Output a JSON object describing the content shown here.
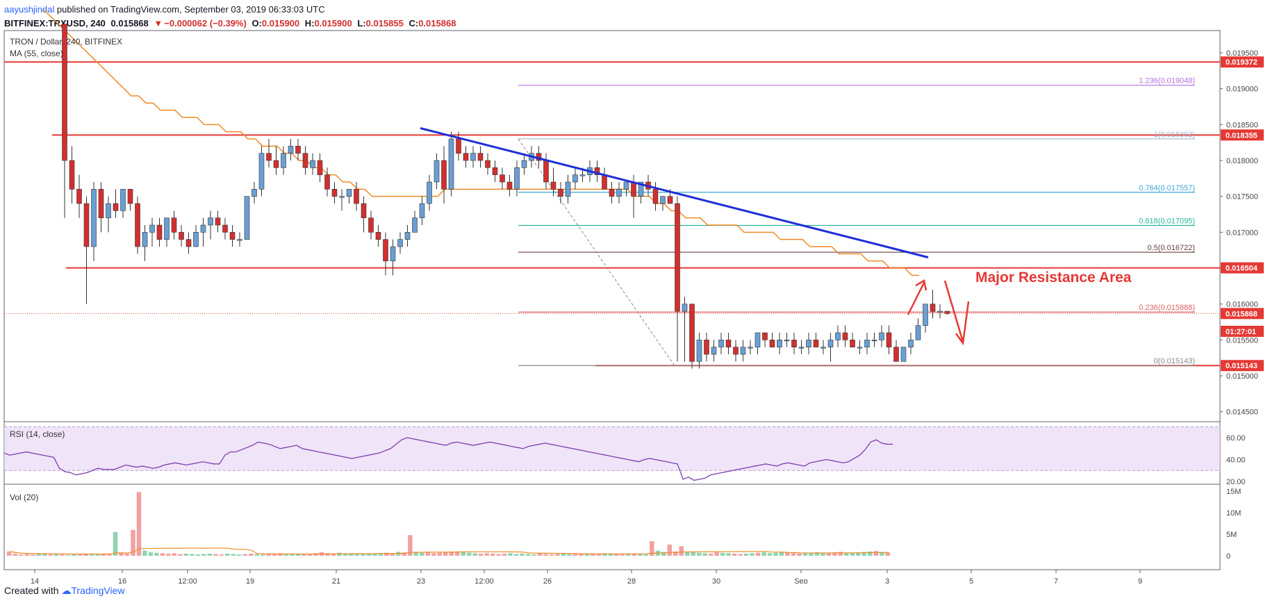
{
  "header": {
    "author": "aayushjindal",
    "published_text": "published on TradingView.com, September 03, 2019 06:33:03 UTC",
    "symbol": "BITFINEX:TRXUSD, 240",
    "last": "0.015868",
    "change_arrow": "▼",
    "change": "−0.000062 (−0.39%)",
    "o_label": "O:",
    "o": "0.015900",
    "h_label": "H:",
    "h": "0.015900",
    "l_label": "L:",
    "l": "0.015855",
    "c_label": "C:",
    "c": "0.015868"
  },
  "pane_title": "TRON / Dollar, 240, BITFINEX",
  "ma_label": "MA (55, close)",
  "rsi_label": "RSI (14, close)",
  "vol_label": "Vol (20)",
  "annotation": "Major Resistance Area",
  "footer": {
    "created_with": "Created with",
    "brand": "TradingView"
  },
  "colors": {
    "up": "#6a9fd4",
    "down": "#d32f2f",
    "ma": "#f08a24",
    "trend": "#1c2fd6",
    "resistance": "#e53935",
    "rsi": "#7e3fb0",
    "vol_up": "#8fd4b0",
    "vol_down": "#f2a1a1"
  },
  "chart_data": {
    "type": "candlestick",
    "symbol": "TRXUSD",
    "interval": "240",
    "ylim": [
      0.01425,
      0.01985
    ],
    "y_ticks": [
      "0.019500",
      "0.019000",
      "0.018500",
      "0.018000",
      "0.017500",
      "0.017000",
      "0.016500",
      "0.016000",
      "0.015500",
      "0.015000",
      "0.014500"
    ],
    "x_ticks": [
      "14",
      "16",
      "12:00",
      "19",
      "21",
      "23",
      "12:00",
      "26",
      "28",
      "30",
      "Sep",
      "3",
      "5",
      "7",
      "9"
    ],
    "price_tags": [
      {
        "label": "0.019372",
        "value": 0.019372,
        "color": "#e53935"
      },
      {
        "label": "0.018355",
        "value": 0.018355,
        "color": "#e53935"
      },
      {
        "label": "0.016504",
        "value": 0.016504,
        "color": "#e53935"
      },
      {
        "label": "0.015868",
        "value": 0.015868,
        "color": "#e53935"
      },
      {
        "label": "01:27:01",
        "value": 0.01562,
        "color": "#e53935"
      },
      {
        "label": "0.015143",
        "value": 0.015143,
        "color": "#e53935"
      }
    ],
    "horizontal_levels": [
      0.019372,
      0.018355,
      0.016504,
      0.015143
    ],
    "fib_levels": [
      {
        "label": "1.236(0.019048)",
        "value": 0.019048,
        "color": "#b36ee0"
      },
      {
        "label": "1(0.018302)",
        "value": 0.018302,
        "color": "#9fb6c8"
      },
      {
        "label": "0.764(0.017557)",
        "value": 0.017557,
        "color": "#3aa6d6"
      },
      {
        "label": "0.618(0.017095)",
        "value": 0.017095,
        "color": "#28b79a"
      },
      {
        "label": "0.5(0.016722)",
        "value": 0.016722,
        "color": "#6b3f3f"
      },
      {
        "label": "0.236(0.015888)",
        "value": 0.015888,
        "color": "#e06060"
      },
      {
        "label": "0(0.015143)",
        "value": 0.015143,
        "color": "#888888"
      }
    ],
    "candles": [
      [
        0.0199,
        0.0199,
        0.0172,
        0.018
      ],
      [
        0.018,
        0.0182,
        0.0174,
        0.0176
      ],
      [
        0.0176,
        0.0178,
        0.0172,
        0.0174
      ],
      [
        0.0174,
        0.0175,
        0.016,
        0.0168
      ],
      [
        0.0168,
        0.0177,
        0.0166,
        0.0176
      ],
      [
        0.0176,
        0.0177,
        0.017,
        0.0172
      ],
      [
        0.0172,
        0.0175,
        0.017,
        0.0174
      ],
      [
        0.0174,
        0.0176,
        0.0172,
        0.0173
      ],
      [
        0.0173,
        0.0176,
        0.0172,
        0.0176
      ],
      [
        0.0176,
        0.0176,
        0.0173,
        0.0174
      ],
      [
        0.0174,
        0.0175,
        0.0167,
        0.0168
      ],
      [
        0.0168,
        0.0171,
        0.0166,
        0.017
      ],
      [
        0.017,
        0.0172,
        0.0168,
        0.0171
      ],
      [
        0.0171,
        0.0172,
        0.0168,
        0.0169
      ],
      [
        0.0169,
        0.0172,
        0.0168,
        0.0172
      ],
      [
        0.0172,
        0.0173,
        0.0169,
        0.017
      ],
      [
        0.017,
        0.0171,
        0.0168,
        0.0169
      ],
      [
        0.0169,
        0.017,
        0.0167,
        0.0168
      ],
      [
        0.0168,
        0.0171,
        0.0168,
        0.017
      ],
      [
        0.017,
        0.0172,
        0.0168,
        0.0171
      ],
      [
        0.0171,
        0.0173,
        0.0169,
        0.0172
      ],
      [
        0.0172,
        0.0173,
        0.017,
        0.0171
      ],
      [
        0.0171,
        0.0172,
        0.0169,
        0.017
      ],
      [
        0.017,
        0.0171,
        0.0168,
        0.0169
      ],
      [
        0.0169,
        0.017,
        0.0168,
        0.0169
      ],
      [
        0.0169,
        0.0175,
        0.0169,
        0.0175
      ],
      [
        0.0175,
        0.0177,
        0.0174,
        0.0176
      ],
      [
        0.0176,
        0.0182,
        0.0175,
        0.0181
      ],
      [
        0.0181,
        0.0183,
        0.0179,
        0.018
      ],
      [
        0.018,
        0.0182,
        0.0178,
        0.0179
      ],
      [
        0.0179,
        0.0182,
        0.0178,
        0.0181
      ],
      [
        0.0181,
        0.0183,
        0.018,
        0.0182
      ],
      [
        0.0182,
        0.0183,
        0.018,
        0.0181
      ],
      [
        0.0181,
        0.0182,
        0.0178,
        0.0179
      ],
      [
        0.0179,
        0.0181,
        0.0178,
        0.018
      ],
      [
        0.018,
        0.0181,
        0.0177,
        0.0178
      ],
      [
        0.0178,
        0.0179,
        0.0175,
        0.0176
      ],
      [
        0.0176,
        0.0177,
        0.0174,
        0.0175
      ],
      [
        0.0175,
        0.0176,
        0.0173,
        0.0175
      ],
      [
        0.0175,
        0.0176,
        0.0174,
        0.0176
      ],
      [
        0.0176,
        0.0177,
        0.0173,
        0.0174
      ],
      [
        0.0174,
        0.0175,
        0.017,
        0.0172
      ],
      [
        0.0172,
        0.0173,
        0.0169,
        0.017
      ],
      [
        0.017,
        0.0171,
        0.0168,
        0.0169
      ],
      [
        0.0169,
        0.017,
        0.0164,
        0.0166
      ],
      [
        0.0166,
        0.0169,
        0.0164,
        0.0168
      ],
      [
        0.0168,
        0.017,
        0.0167,
        0.0169
      ],
      [
        0.0169,
        0.0171,
        0.0168,
        0.017
      ],
      [
        0.017,
        0.0173,
        0.017,
        0.0172
      ],
      [
        0.0172,
        0.0175,
        0.0171,
        0.0174
      ],
      [
        0.0174,
        0.0178,
        0.0173,
        0.0177
      ],
      [
        0.0177,
        0.0181,
        0.0176,
        0.018
      ],
      [
        0.018,
        0.0182,
        0.0174,
        0.0176
      ],
      [
        0.0176,
        0.0184,
        0.0175,
        0.0183
      ],
      [
        0.0183,
        0.0184,
        0.018,
        0.0181
      ],
      [
        0.0181,
        0.0182,
        0.0179,
        0.018
      ],
      [
        0.018,
        0.0182,
        0.0179,
        0.0181
      ],
      [
        0.0181,
        0.0182,
        0.0179,
        0.018
      ],
      [
        0.018,
        0.0181,
        0.0178,
        0.0179
      ],
      [
        0.0179,
        0.018,
        0.0177,
        0.0178
      ],
      [
        0.0178,
        0.0179,
        0.0176,
        0.0177
      ],
      [
        0.0177,
        0.0178,
        0.0175,
        0.0176
      ],
      [
        0.0176,
        0.018,
        0.0175,
        0.0179
      ],
      [
        0.0179,
        0.0181,
        0.0178,
        0.018
      ],
      [
        0.018,
        0.0182,
        0.0179,
        0.0181
      ],
      [
        0.0181,
        0.0182,
        0.0179,
        0.018
      ],
      [
        0.018,
        0.0181,
        0.0176,
        0.0177
      ],
      [
        0.0177,
        0.0179,
        0.0175,
        0.0176
      ],
      [
        0.0176,
        0.0177,
        0.0174,
        0.0175
      ],
      [
        0.0175,
        0.0178,
        0.0174,
        0.0177
      ],
      [
        0.0177,
        0.0179,
        0.0176,
        0.0178
      ],
      [
        0.0178,
        0.0179,
        0.0177,
        0.0178
      ],
      [
        0.0178,
        0.018,
        0.0177,
        0.0179
      ],
      [
        0.0179,
        0.018,
        0.0177,
        0.0178
      ],
      [
        0.0178,
        0.0179,
        0.0176,
        0.0176
      ],
      [
        0.0176,
        0.0177,
        0.0174,
        0.0175
      ],
      [
        0.0175,
        0.0177,
        0.0174,
        0.0176
      ],
      [
        0.0176,
        0.0177,
        0.0175,
        0.0177
      ],
      [
        0.0177,
        0.0178,
        0.0172,
        0.0175
      ],
      [
        0.0175,
        0.0177,
        0.0174,
        0.0177
      ],
      [
        0.0177,
        0.0178,
        0.0175,
        0.0176
      ],
      [
        0.0176,
        0.0177,
        0.0173,
        0.0174
      ],
      [
        0.0174,
        0.0175,
        0.0173,
        0.0175
      ],
      [
        0.0175,
        0.0176,
        0.0174,
        0.0174
      ],
      [
        0.0174,
        0.0175,
        0.0152,
        0.0159
      ],
      [
        0.0159,
        0.0161,
        0.0152,
        0.016
      ],
      [
        0.016,
        0.016,
        0.0151,
        0.0152
      ],
      [
        0.0152,
        0.0156,
        0.0151,
        0.0155
      ],
      [
        0.0155,
        0.0156,
        0.0152,
        0.0153
      ],
      [
        0.0153,
        0.0155,
        0.0152,
        0.0154
      ],
      [
        0.0154,
        0.0156,
        0.0153,
        0.0155
      ],
      [
        0.0155,
        0.0156,
        0.0153,
        0.0154
      ],
      [
        0.0154,
        0.0155,
        0.0152,
        0.0153
      ],
      [
        0.0153,
        0.0155,
        0.0152,
        0.0154
      ],
      [
        0.0154,
        0.0155,
        0.0153,
        0.0154
      ],
      [
        0.0154,
        0.0156,
        0.0153,
        0.0156
      ],
      [
        0.0156,
        0.0156,
        0.0154,
        0.0155
      ],
      [
        0.0155,
        0.0156,
        0.0154,
        0.0154
      ],
      [
        0.0154,
        0.0156,
        0.0153,
        0.0155
      ],
      [
        0.0155,
        0.0156,
        0.0154,
        0.0155
      ],
      [
        0.0155,
        0.0156,
        0.0153,
        0.0154
      ],
      [
        0.0154,
        0.0155,
        0.0153,
        0.0154
      ],
      [
        0.0154,
        0.0156,
        0.0153,
        0.0155
      ],
      [
        0.0155,
        0.0156,
        0.0154,
        0.0154
      ],
      [
        0.0154,
        0.0155,
        0.0153,
        0.0154
      ],
      [
        0.0154,
        0.0156,
        0.0152,
        0.0155
      ],
      [
        0.0155,
        0.0157,
        0.0154,
        0.0156
      ],
      [
        0.0156,
        0.0157,
        0.0154,
        0.0155
      ],
      [
        0.0155,
        0.0156,
        0.0154,
        0.0154
      ],
      [
        0.0154,
        0.0155,
        0.0153,
        0.0154
      ],
      [
        0.0154,
        0.0156,
        0.0153,
        0.0155
      ],
      [
        0.0155,
        0.0156,
        0.0154,
        0.0155
      ],
      [
        0.0155,
        0.0157,
        0.0154,
        0.0156
      ],
      [
        0.0156,
        0.0157,
        0.0153,
        0.0154
      ],
      [
        0.0154,
        0.0155,
        0.0152,
        0.0152
      ],
      [
        0.0152,
        0.0154,
        0.0152,
        0.0154
      ],
      [
        0.0154,
        0.0156,
        0.0153,
        0.0155
      ],
      [
        0.0155,
        0.0158,
        0.0155,
        0.0157
      ],
      [
        0.0157,
        0.016,
        0.0156,
        0.016
      ],
      [
        0.016,
        0.0162,
        0.0158,
        0.0159
      ],
      [
        0.0159,
        0.016,
        0.0158,
        0.0159
      ],
      [
        0.0159,
        0.0159,
        0.01585,
        0.015868
      ]
    ],
    "ma55": [
      0.0201,
      0.02,
      0.0199,
      0.0198,
      0.0197,
      0.0196,
      0.0195,
      0.0194,
      0.0193,
      0.0192,
      0.0191,
      0.019,
      0.0189,
      0.0189,
      0.0188,
      0.0188,
      0.0187,
      0.0187,
      0.0187,
      0.0186,
      0.0186,
      0.0186,
      0.0185,
      0.0185,
      0.0185,
      0.0184,
      0.0184,
      0.0184,
      0.0183,
      0.0183,
      0.0182,
      0.0182,
      0.0182,
      0.0181,
      0.0181,
      0.018,
      0.018,
      0.0179,
      0.0179,
      0.0178,
      0.0178,
      0.0177,
      0.0177,
      0.0176,
      0.0176,
      0.0175,
      0.0175,
      0.0175,
      0.0175,
      0.0175,
      0.0175,
      0.0175,
      0.0175,
      0.0175,
      0.0175,
      0.0176,
      0.0176,
      0.0176,
      0.0176,
      0.0176,
      0.0176,
      0.0176,
      0.0176,
      0.0176,
      0.0176,
      0.0176,
      0.0176,
      0.0176,
      0.0176,
      0.0176,
      0.0176,
      0.0176,
      0.0176,
      0.0176,
      0.0176,
      0.0176,
      0.0176,
      0.0176,
      0.0176,
      0.0176,
      0.0176,
      0.0175,
      0.0175,
      0.0175,
      0.0174,
      0.0174,
      0.0173,
      0.0173,
      0.0172,
      0.0172,
      0.0172,
      0.0171,
      0.0171,
      0.0171,
      0.0171,
      0.0171,
      0.017,
      0.017,
      0.017,
      0.017,
      0.017,
      0.0169,
      0.0169,
      0.0169,
      0.0169,
      0.0168,
      0.0168,
      0.0168,
      0.0168,
      0.0167,
      0.0167,
      0.0167,
      0.0167,
      0.0166,
      0.0166,
      0.0166,
      0.0165,
      0.0165,
      0.0165,
      0.0164,
      0.0164
    ],
    "rsi": {
      "ylim": [
        15,
        70
      ],
      "ticks": [
        "60.00",
        "40.00",
        "20.00"
      ],
      "band": [
        30,
        70
      ],
      "values": [
        46,
        44,
        45,
        46,
        47,
        46,
        45,
        44,
        43,
        42,
        32,
        29,
        28,
        26,
        27,
        28,
        30,
        32,
        31,
        31,
        31,
        33,
        35,
        34,
        33,
        34,
        33,
        32,
        33,
        35,
        36,
        37,
        36,
        35,
        36,
        37,
        38,
        37,
        36,
        36,
        44,
        47,
        47,
        49,
        51,
        53,
        56,
        55,
        54,
        52,
        50,
        51,
        52,
        53,
        50,
        49,
        48,
        47,
        46,
        45,
        44,
        43,
        42,
        41,
        42,
        43,
        44,
        45,
        46,
        48,
        50,
        54,
        58,
        60,
        59,
        58,
        57,
        56,
        55,
        54,
        53,
        55,
        56,
        55,
        54,
        53,
        54,
        55,
        56,
        55,
        54,
        53,
        52,
        51,
        50,
        52,
        53,
        54,
        55,
        54,
        53,
        52,
        51,
        50,
        49,
        48,
        47,
        46,
        45,
        44,
        43,
        42,
        41,
        40,
        39,
        38,
        40,
        41,
        40,
        39,
        38,
        37,
        36,
        22,
        24,
        21,
        22,
        23,
        26,
        27,
        28,
        29,
        30,
        31,
        32,
        33,
        34,
        35,
        36,
        35,
        34,
        36,
        37,
        36,
        35,
        34,
        37,
        38,
        39,
        40,
        39,
        38,
        37,
        38,
        41,
        44,
        49,
        56,
        58,
        55,
        54,
        54
      ],
      "visible_count": 162
    },
    "volume": {
      "ylim": [
        0,
        15000000
      ],
      "ticks": [
        "15M",
        "10M",
        "5M",
        "0"
      ],
      "bars": [
        1,
        0.5,
        0.3,
        0.4,
        0.3,
        0.5,
        0.4,
        0.3,
        0.4,
        0.3,
        0.2,
        0.4,
        0.3,
        0.5,
        0.4,
        0.3,
        0.4,
        0.3,
        5.5,
        0.6,
        0.5,
        6,
        14.8,
        1.2,
        0.8,
        0.7,
        0.6,
        0.5,
        0.6,
        0.4,
        0.5,
        0.4,
        0.3,
        0.4,
        0.5,
        0.4,
        0.3,
        0.5,
        0.4,
        0.3,
        0.4,
        0.5,
        0.4,
        0.3,
        0.4,
        0.3,
        0.6,
        0.5,
        0.4,
        0.5,
        0.4,
        0.3,
        0.6,
        0.8,
        0.6,
        0.5,
        0.7,
        0.6,
        0.5,
        0.4,
        0.5,
        0.6,
        0.4,
        0.5,
        0.7,
        0.6,
        0.9,
        0.8,
        4.8,
        0.9,
        0.7,
        0.8,
        0.6,
        0.7,
        0.8,
        0.9,
        1.0,
        0.8,
        0.7,
        0.6,
        0.5,
        0.6,
        0.5,
        0.4,
        0.5,
        0.6,
        0.4,
        0.5,
        0.4,
        0.3,
        0.5,
        0.4,
        0.3,
        0.4,
        0.5,
        0.4,
        0.6,
        0.5,
        0.4,
        0.5,
        0.4,
        0.6,
        0.5,
        0.4,
        0.3,
        0.4,
        0.5,
        0.4,
        0.3,
        3.4,
        1.2,
        0.9,
        2.6,
        1.0,
        2.2,
        0.8,
        0.9,
        0.7,
        0.6,
        0.5,
        0.8,
        0.7,
        0.6,
        0.5,
        0.4,
        0.5,
        0.6,
        0.7,
        0.8,
        0.6,
        0.7,
        0.9,
        0.8,
        0.6,
        0.5,
        0.7,
        0.6,
        0.8,
        0.7,
        0.6,
        0.8,
        0.9,
        0.7,
        0.6,
        0.8,
        0.9,
        1.0,
        1.1,
        0.9,
        0.8
      ],
      "bar_unit": "M"
    }
  }
}
